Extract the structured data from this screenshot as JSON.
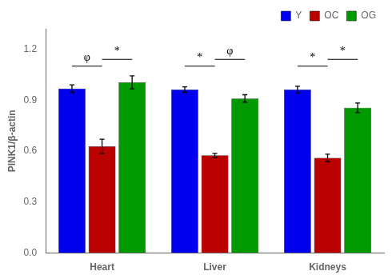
{
  "chart_data": {
    "type": "bar",
    "categories": [
      "Heart",
      "Liver",
      "Kidneys"
    ],
    "series": [
      {
        "name": "Y",
        "color": "#0000ee",
        "values": [
          0.968,
          0.962,
          0.962
        ],
        "errors": [
          0.022,
          0.016,
          0.02
        ]
      },
      {
        "name": "OC",
        "color": "#bb0000",
        "values": [
          0.628,
          0.575,
          0.56
        ],
        "errors": [
          0.042,
          0.012,
          0.022
        ]
      },
      {
        "name": "OG",
        "color": "#009900",
        "values": [
          1.005,
          0.91,
          0.855
        ],
        "errors": [
          0.038,
          0.022,
          0.028
        ]
      }
    ],
    "ylabel": "PINK1/β-actin",
    "ylim": [
      0.0,
      1.32
    ],
    "yticks": [
      {
        "value": 0.0,
        "label": "0.0"
      },
      0.3,
      0.6,
      0.9,
      1.2
    ],
    "grid": false,
    "legend": "upper right",
    "annotations": [
      {
        "category": "Heart",
        "series": [
          "Y",
          "OC"
        ],
        "text": "φ",
        "y": 1.1,
        "text_y": 1.115
      },
      {
        "category": "Heart",
        "series": [
          "OC",
          "OG"
        ],
        "text": "*",
        "y": 1.14,
        "text_y": 1.155
      },
      {
        "category": "Liver",
        "series": [
          "Y",
          "OC"
        ],
        "text": "*",
        "y": 1.1,
        "text_y": 1.115
      },
      {
        "category": "Liver",
        "series": [
          "OC",
          "OG"
        ],
        "text": "φ",
        "y": 1.14,
        "text_y": 1.155
      },
      {
        "category": "Kidneys",
        "series": [
          "Y",
          "OC"
        ],
        "text": "*",
        "y": 1.1,
        "text_y": 1.115
      },
      {
        "category": "Kidneys",
        "series": [
          "OC",
          "OG"
        ],
        "text": "*",
        "y": 1.14,
        "text_y": 1.155
      }
    ]
  }
}
